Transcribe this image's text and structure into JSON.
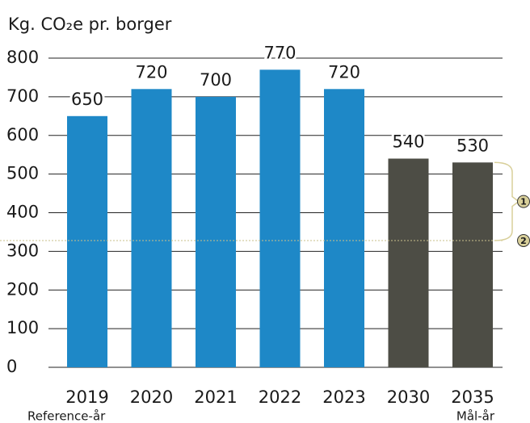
{
  "chart_data": {
    "type": "bar",
    "title": "Kg. CO₂e pr. borger",
    "categories": [
      "2019",
      "2020",
      "2021",
      "2022",
      "2023",
      "2030",
      "2035"
    ],
    "category_notes": [
      "Reference-år",
      null,
      null,
      null,
      null,
      null,
      "Mål-år"
    ],
    "values": [
      650,
      720,
      700,
      770,
      720,
      540,
      530
    ],
    "colors": [
      "#1e88c7",
      "#1e88c7",
      "#1e88c7",
      "#1e88c7",
      "#1e88c7",
      "#4d4d45",
      "#4d4d45"
    ],
    "ylim": [
      0,
      800
    ],
    "yticks": [
      0,
      100,
      200,
      300,
      400,
      500,
      600,
      700,
      800
    ],
    "grid": true,
    "reference_line": 328,
    "markers": [
      "1",
      "2"
    ]
  }
}
